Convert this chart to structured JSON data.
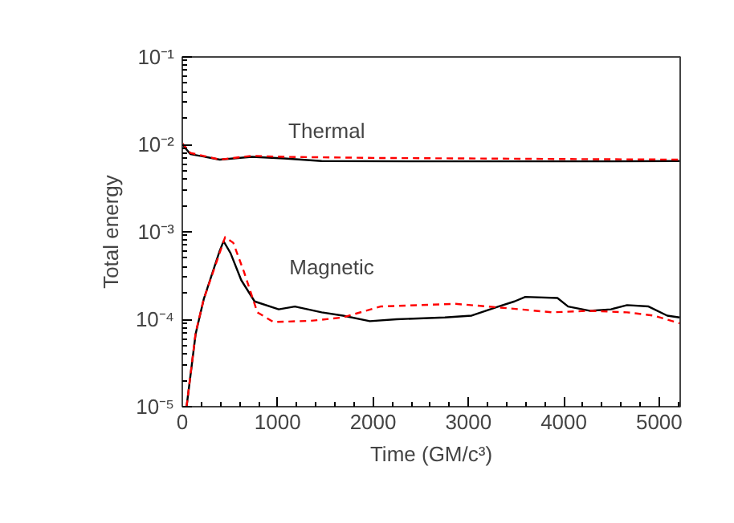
{
  "chart_data": {
    "type": "line",
    "xlabel": "Time (GM/c³)",
    "ylabel": "Total energy",
    "log": "y",
    "grid": false,
    "marker": "none",
    "xlim": [
      0,
      5220
    ],
    "ylim": [
      1e-05,
      0.1
    ],
    "xticks": [
      0,
      1000,
      2000,
      3000,
      4000,
      5000
    ],
    "yticks": [
      {
        "value": 1e-05,
        "label": "10⁻⁵"
      },
      {
        "value": 0.0001,
        "label": "10⁻⁴"
      },
      {
        "value": 0.001,
        "label": "10⁻³"
      },
      {
        "value": 0.01,
        "label": "10⁻²"
      },
      {
        "value": 0.1,
        "label": "10⁻¹"
      }
    ],
    "annotations": [
      "Thermal",
      "Magnetic"
    ],
    "series": [
      {
        "color": "#000000",
        "line_style": "solid",
        "x": [
          0,
          84,
          393,
          730,
          1067,
          1461,
          2500,
          3500,
          4500,
          5213
        ],
        "values": [
          0.01,
          0.00775,
          0.0067,
          0.0072,
          0.0069,
          0.00645,
          0.0064,
          0.0064,
          0.0064,
          0.00645
        ]
      },
      {
        "color": "#ff0000",
        "line_style": "dashed",
        "x": [
          0,
          84,
          393,
          730,
          1067,
          2000,
          3000,
          4000,
          5213
        ],
        "values": [
          0.0103,
          0.008,
          0.0067,
          0.0074,
          0.0072,
          0.007,
          0.0069,
          0.0068,
          0.0067
        ]
      },
      {
        "color": "#000000",
        "line_style": "solid",
        "x": [
          45,
          140,
          225,
          393,
          433,
          506,
          618,
          758,
          1011,
          1180,
          1461,
          1685,
          1966,
          2247,
          2753,
          3034,
          3315,
          3483,
          3596,
          3933,
          4045,
          4270,
          4494,
          4663,
          4888,
          5084,
          5213
        ],
        "values": [
          1e-05,
          6.8e-05,
          0.00017,
          0.00061,
          0.00078,
          0.00057,
          0.00028,
          0.00016,
          0.00013,
          0.00014,
          0.00012,
          0.00011,
          9.5e-05,
          0.0001,
          0.000105,
          0.00011,
          0.00014,
          0.00016,
          0.00018,
          0.000175,
          0.00014,
          0.000125,
          0.00013,
          0.000145,
          0.00014,
          0.00011,
          0.000105
        ]
      },
      {
        "color": "#ff0000",
        "line_style": "dashed",
        "x": [
          45,
          140,
          225,
          449,
          534,
          646,
          787,
          955,
          1348,
          1685,
          2079,
          2472,
          2865,
          3202,
          3539,
          3876,
          4270,
          4663,
          4944,
          5213
        ],
        "values": [
          1e-05,
          7e-05,
          0.00017,
          0.00087,
          0.00075,
          0.00035,
          0.00012,
          9.3e-05,
          9.6e-05,
          0.000105,
          0.00014,
          0.000145,
          0.00015,
          0.00014,
          0.00013,
          0.00012,
          0.000125,
          0.00012,
          0.00011,
          9e-05
        ]
      }
    ]
  }
}
